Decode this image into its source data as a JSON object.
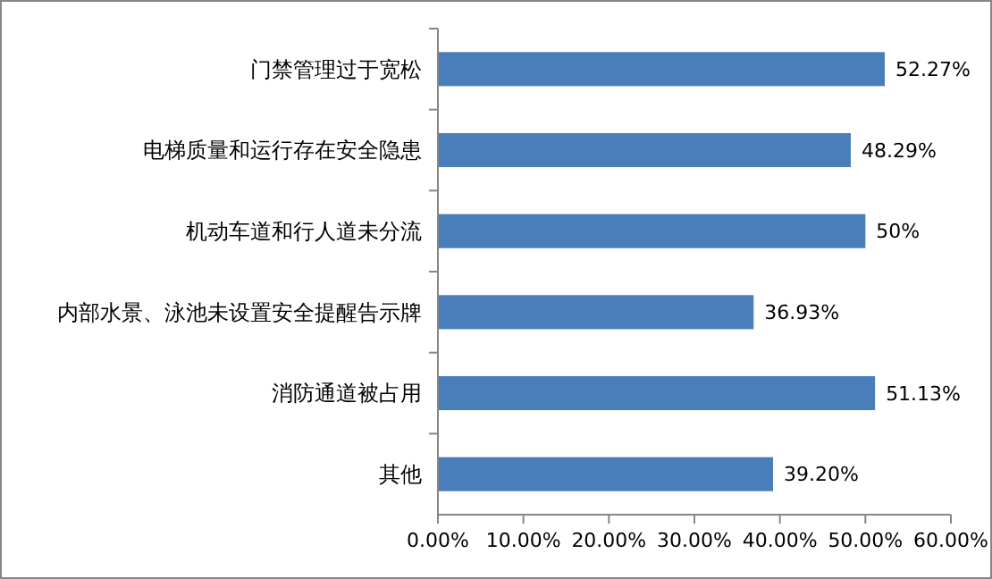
{
  "chart_data": {
    "type": "bar",
    "orientation": "horizontal",
    "categories": [
      "门禁管理过于宽松",
      "电梯质量和运行存在安全隐患",
      "机动车道和行人道未分流",
      "内部水景、泳池未设置安全提醒告示牌",
      "消防通道被占用",
      "其他"
    ],
    "series": [
      {
        "color": "#4a7ebb",
        "values": [
          52.27,
          48.29,
          50,
          36.93,
          51.13,
          39.2
        ],
        "value_labels": [
          "52.27%",
          "48.29%",
          "50%",
          "36.93%",
          "51.13%",
          "39.20%"
        ]
      }
    ],
    "xlim": [
      0,
      60
    ],
    "xticks": [
      {
        "value": 0,
        "label": "0.00%"
      },
      {
        "value": 10,
        "label": "10.00%"
      },
      {
        "value": 20,
        "label": "20.00%"
      },
      {
        "value": 30,
        "label": "30.00%"
      },
      {
        "value": 40,
        "label": "40.00%"
      },
      {
        "value": 50,
        "label": "50.00%"
      },
      {
        "value": 60,
        "label": "60.00%"
      }
    ],
    "grid": false
  }
}
